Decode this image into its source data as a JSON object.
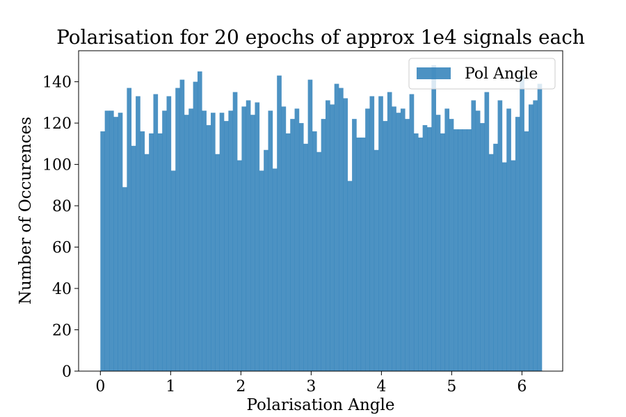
{
  "chart_data": {
    "type": "bar",
    "title": "Polarisation for 20 epochs of approx 1e4 signals each",
    "xlabel": "Polarisation Angle",
    "ylabel": "Number of Occurences",
    "xlim": [
      -0.31,
      6.58
    ],
    "ylim": [
      0,
      155
    ],
    "xticks": [
      0,
      1,
      2,
      3,
      4,
      5,
      6
    ],
    "yticks": [
      0,
      20,
      40,
      60,
      80,
      100,
      120,
      140
    ],
    "grid": false,
    "legend_position": "top-right",
    "bin_range": [
      0,
      6.2832
    ],
    "series": [
      {
        "name": "Pol Angle",
        "color": "#1f77b4",
        "values": [
          116,
          126,
          126,
          123,
          125,
          89,
          137,
          109,
          133,
          116,
          105,
          115,
          134,
          115,
          126,
          133,
          97,
          137,
          141,
          124,
          127,
          140,
          145,
          126,
          119,
          125,
          105,
          125,
          121,
          126,
          135,
          102,
          128,
          131,
          124,
          130,
          97,
          107,
          126,
          98,
          143,
          128,
          115,
          122,
          127,
          120,
          110,
          141,
          116,
          106,
          122,
          131,
          129,
          139,
          137,
          132,
          92,
          122,
          113,
          113,
          127,
          133,
          107,
          133,
          121,
          135,
          128,
          125,
          127,
          122,
          134,
          115,
          113,
          119,
          118,
          148,
          124,
          115,
          127,
          122,
          117,
          117,
          117,
          117,
          131,
          126,
          120,
          135,
          105,
          110,
          131,
          101,
          127,
          102,
          123,
          143,
          116,
          129,
          131,
          139
        ]
      }
    ]
  }
}
